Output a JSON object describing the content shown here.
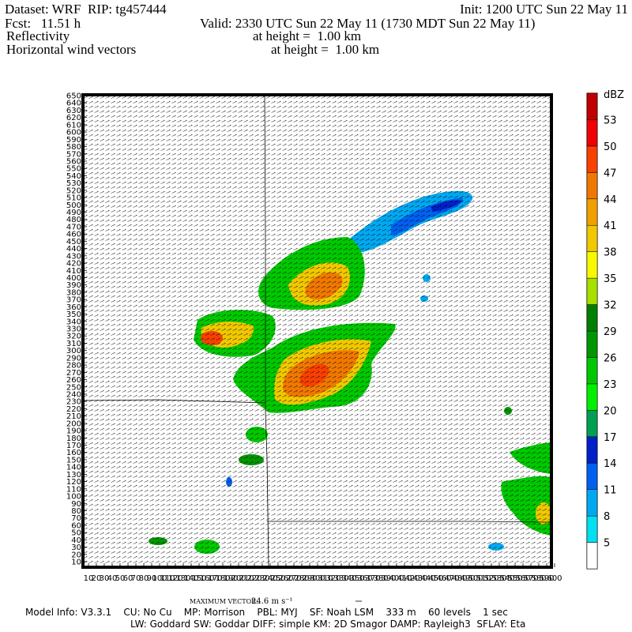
{
  "header": {
    "dataset": "Dataset: WRF  RIP: tg457444",
    "init": "Init: 1200 UTC Sun 22 May 11",
    "fcst": "Fcst:   11.51 h",
    "valid": "Valid: 2330 UTC Sun 22 May 11 (1730 MDT Sun 22 May 11)",
    "field1": "Reflectivity",
    "field1_height": "at height =  1.00 km",
    "field2": "Horizontal wind vectors",
    "field2_height": "at height =  1.00 km"
  },
  "plot": {
    "xlim": [
      10,
      600
    ],
    "ylim": [
      10,
      650
    ],
    "xticks": [
      10,
      20,
      30,
      40,
      50,
      60,
      70,
      80,
      90,
      100,
      110,
      120,
      130,
      140,
      150,
      160,
      170,
      180,
      190,
      200,
      210,
      220,
      230,
      240,
      250,
      260,
      270,
      280,
      290,
      300,
      310,
      320,
      330,
      340,
      350,
      360,
      370,
      380,
      390,
      400,
      410,
      420,
      430,
      440,
      450,
      460,
      470,
      480,
      490,
      500,
      510,
      520,
      530,
      540,
      550,
      560,
      570,
      580,
      590,
      600
    ],
    "yticks": [
      10,
      20,
      30,
      40,
      50,
      60,
      70,
      80,
      90,
      100,
      110,
      120,
      130,
      140,
      150,
      160,
      170,
      180,
      190,
      200,
      210,
      220,
      230,
      240,
      250,
      260,
      270,
      280,
      290,
      300,
      310,
      320,
      330,
      340,
      350,
      360,
      370,
      380,
      390,
      400,
      410,
      420,
      430,
      440,
      450,
      460,
      470,
      480,
      490,
      500,
      510,
      520,
      530,
      540,
      550,
      560,
      570,
      580,
      590,
      600,
      610,
      620,
      630,
      640,
      650
    ]
  },
  "colorbar": {
    "unit": "dBZ",
    "levels": [
      5,
      8,
      11,
      14,
      17,
      20,
      23,
      26,
      29,
      32,
      35,
      38,
      41,
      44,
      47,
      50,
      53
    ],
    "colors": [
      "#ffffff",
      "#00e0f0",
      "#00a8f0",
      "#0060f0",
      "#0020c8",
      "#00a050",
      "#00f000",
      "#00c800",
      "#009600",
      "#008000",
      "#a8e000",
      "#f8f800",
      "#f0c800",
      "#f0a000",
      "#f07800",
      "#f84000",
      "#f00000",
      "#c00000"
    ]
  },
  "footer": {
    "max_vector_label": "MAXIMUM VECTOR:",
    "max_vector_value": "24.6 m s⁻¹",
    "model_info": "Model Info: V3.3.1    CU: No Cu    MP: Morrison    PBL: MYJ    SF: Noah LSM    333 m    60 levels    1 sec",
    "physics": "LW: Goddard SW: Goddar DIFF: simple KM: 2D Smagor DAMP: Rayleigh3  SFLAY: Eta"
  }
}
